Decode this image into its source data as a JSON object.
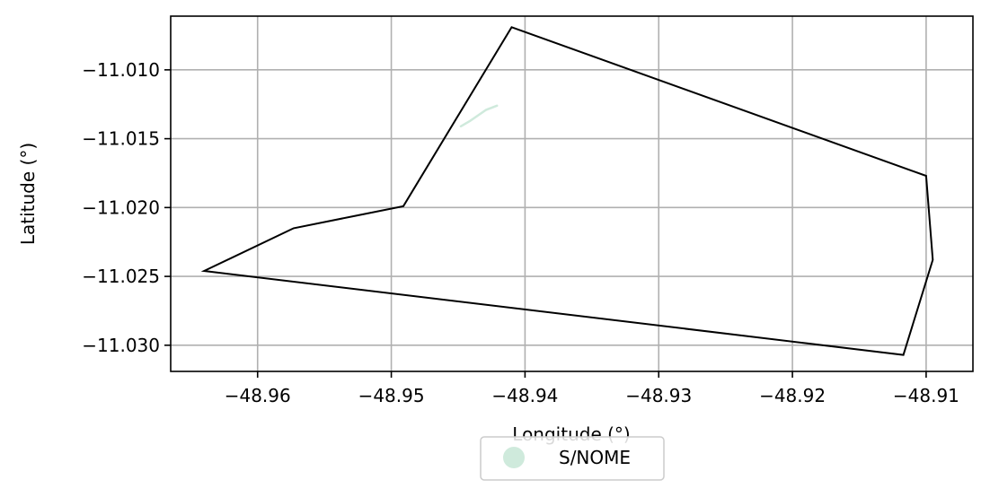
{
  "chart_data": {
    "type": "map",
    "xlabel": "Longitude (°)",
    "ylabel": "Latitude (°)",
    "xlim": [
      -48.9665,
      -48.9065
    ],
    "ylim": [
      -11.0319,
      -11.0061
    ],
    "xticks": [
      -48.96,
      -48.95,
      -48.94,
      -48.93,
      -48.92,
      -48.91
    ],
    "yticks": [
      -11.01,
      -11.015,
      -11.02,
      -11.025,
      -11.03
    ],
    "xtick_labels": [
      "−48.96",
      "−48.95",
      "−48.94",
      "−48.93",
      "−48.92",
      "−48.91"
    ],
    "ytick_labels": [
      "−11.010",
      "−11.015",
      "−11.020",
      "−11.025",
      "−11.030"
    ],
    "grid": true,
    "boundary": {
      "stroke": "#000000",
      "points": [
        [
          -48.941,
          -11.0069
        ],
        [
          -48.91,
          -11.0177
        ],
        [
          -48.9095,
          -11.0238
        ],
        [
          -48.9117,
          -11.0307
        ],
        [
          -48.964,
          -11.0246
        ],
        [
          -48.9573,
          -11.0215
        ],
        [
          -48.9527,
          -11.0206
        ],
        [
          -48.9491,
          -11.0199
        ]
      ]
    },
    "features": [
      {
        "name": "S/NOME",
        "color": "#cfeadc",
        "points": [
          [
            -48.9448,
            -11.0141
          ],
          [
            -48.9441,
            -11.0137
          ],
          [
            -48.9435,
            -11.0133
          ],
          [
            -48.9429,
            -11.0129
          ],
          [
            -48.9421,
            -11.0126
          ]
        ]
      }
    ],
    "legend": {
      "position": "bottom-center",
      "entries": [
        {
          "label": "S/NOME",
          "color": "#cfeadc"
        }
      ]
    }
  }
}
